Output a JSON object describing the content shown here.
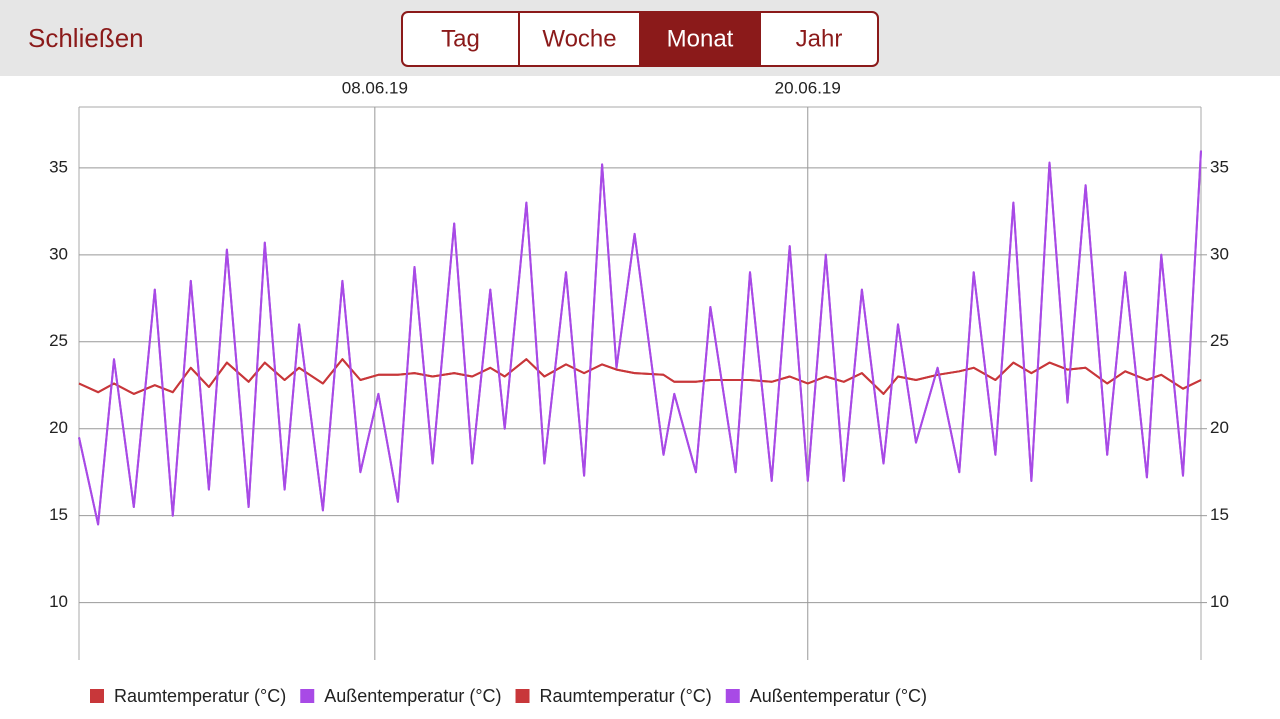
{
  "header": {
    "close": "Schließen",
    "tabs": [
      "Tag",
      "Woche",
      "Monat",
      "Jahr"
    ],
    "selected_tab": 2
  },
  "chart_data": {
    "type": "line",
    "x": [
      -0.2,
      0.33,
      0.77,
      1.32,
      1.9,
      2.4,
      2.9,
      3.4,
      3.9,
      4.5,
      4.95,
      5.5,
      5.9,
      6.56,
      7.1,
      7.6,
      8.1,
      8.64,
      9.1,
      9.6,
      10.2,
      10.7,
      11.2,
      11.6,
      12.2,
      12.7,
      13.3,
      13.8,
      14.3,
      14.7,
      15.2,
      16.0,
      16.3,
      16.9,
      17.3,
      18.0,
      18.4,
      19.0,
      19.5,
      20.0,
      20.5,
      21.0,
      21.5,
      22.1,
      22.5,
      23.0,
      23.6,
      24.2,
      24.6,
      25.2,
      25.7,
      26.2,
      26.7,
      27.2,
      27.7,
      28.3,
      28.8,
      29.4,
      29.8,
      30.4,
      30.9
    ],
    "xlim": [
      -0.2,
      30.9
    ],
    "xticks": [
      {
        "value": 8,
        "label": "08.06.19"
      },
      {
        "value": 20,
        "label": "20.06.19"
      }
    ],
    "ylim": [
      6.7,
      38.5
    ],
    "yticks": [
      10,
      15,
      20,
      25,
      30,
      35
    ],
    "y2lim": [
      6.7,
      38.5
    ],
    "y2ticks": [
      10,
      15,
      20,
      25,
      30,
      35
    ],
    "grid": true,
    "series": [
      {
        "name": "Raumtemperatur (°C)",
        "color": "#c8373a",
        "values": [
          22.6,
          22.1,
          22.6,
          22,
          22.5,
          22.1,
          23.5,
          22.4,
          23.8,
          22.7,
          23.8,
          22.8,
          23.5,
          22.6,
          24,
          22.8,
          23.1,
          23.1,
          23.2,
          23,
          23.2,
          23,
          23.5,
          23,
          24,
          23,
          23.7,
          23.2,
          23.7,
          23.4,
          23.2,
          23.1,
          22.7,
          22.7,
          22.8,
          22.8,
          22.8,
          22.7,
          23,
          22.6,
          23,
          22.7,
          23.2,
          22,
          23,
          22.8,
          23.1,
          23.3,
          23.5,
          22.8,
          23.8,
          23.2,
          23.8,
          23.4,
          23.5,
          22.6,
          23.3,
          22.8,
          23.1,
          22.3,
          22.8
        ]
      },
      {
        "name": "Außentemperatur (°C)",
        "color": "#a84ae6",
        "values": [
          19.5,
          14.5,
          24,
          15.5,
          28,
          15,
          28.5,
          16.5,
          30.3,
          15.5,
          30.7,
          16.5,
          26,
          15.3,
          28.5,
          17.5,
          22,
          15.8,
          29.3,
          18,
          31.8,
          18,
          28,
          20,
          33,
          18,
          29,
          17.3,
          35.2,
          23.5,
          31.2,
          18.5,
          22,
          17.5,
          27,
          17.5,
          29,
          17,
          30.5,
          17,
          30,
          17,
          28,
          18,
          26,
          19.2,
          23.5,
          17.5,
          29,
          18.5,
          33,
          17,
          35.3,
          21.5,
          34,
          18.5,
          29,
          17.2,
          30,
          17.3,
          36
        ]
      },
      {
        "name": "Raumtemperatur (°C)",
        "color": "#c8373a",
        "axis": "y2",
        "values": [
          22.6,
          22.1,
          22.6,
          22,
          22.5,
          22.1,
          23.5,
          22.4,
          23.8,
          22.7,
          23.8,
          22.8,
          23.5,
          22.6,
          24,
          22.8,
          23.1,
          23.1,
          23.2,
          23,
          23.2,
          23,
          23.5,
          23,
          24,
          23,
          23.7,
          23.2,
          23.7,
          23.4,
          23.2,
          23.1,
          22.7,
          22.7,
          22.8,
          22.8,
          22.8,
          22.7,
          23,
          22.6,
          23,
          22.7,
          23.2,
          22,
          23,
          22.8,
          23.1,
          23.3,
          23.5,
          22.8,
          23.8,
          23.2,
          23.8,
          23.4,
          23.5,
          22.6,
          23.3,
          22.8,
          23.1,
          22.3,
          22.8
        ]
      },
      {
        "name": "Außentemperatur (°C)",
        "color": "#a84ae6",
        "axis": "y2",
        "values": [
          19.5,
          14.5,
          24,
          15.5,
          28,
          15,
          28.5,
          16.5,
          30.3,
          15.5,
          30.7,
          16.5,
          26,
          15.3,
          28.5,
          17.5,
          22,
          15.8,
          29.3,
          18,
          31.8,
          18,
          28,
          20,
          33,
          18,
          29,
          17.3,
          35.2,
          23.5,
          31.2,
          18.5,
          22,
          17.5,
          27,
          17.5,
          29,
          17,
          30.5,
          17,
          30,
          17,
          28,
          18,
          26,
          19.2,
          23.5,
          17.5,
          29,
          18.5,
          33,
          17,
          35.3,
          21.5,
          34,
          18.5,
          29,
          17.2,
          30,
          17.3,
          36
        ]
      }
    ]
  }
}
